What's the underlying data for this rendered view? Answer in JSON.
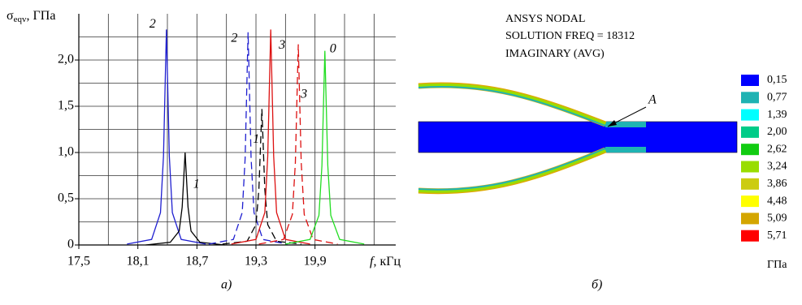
{
  "chart_data": {
    "type": "line",
    "ylabel_symbol": "σ",
    "ylabel_subscript": "eqv",
    "ylabel_unit": ", ГПа",
    "xlabel_symbol": "f",
    "xlabel_unit": ", кГц",
    "caption": "а)",
    "xlim": [
      17.5,
      20.72
    ],
    "ylim": [
      0,
      2.5
    ],
    "xticks": [
      {
        "value": 17.5,
        "label": "17,5"
      },
      {
        "value": 18.1,
        "label": "18,1"
      },
      {
        "value": 18.7,
        "label": "18,7"
      },
      {
        "value": 19.3,
        "label": "19,3"
      },
      {
        "value": 19.9,
        "label": "19,9"
      }
    ],
    "yticks": [
      0,
      {
        "value": 0.5,
        "label": "0,5"
      },
      {
        "value": 1.0,
        "label": "1,0"
      },
      {
        "value": 1.5,
        "label": "1,5"
      },
      {
        "value": 2.0,
        "label": "2,0"
      }
    ],
    "xminorticks": [
      17.8,
      18.4,
      19.0,
      19.6,
      20.2,
      20.5
    ],
    "yminorticks": [
      0.25,
      0.75,
      1.25,
      1.75,
      2.25
    ],
    "grid": true,
    "series": [
      {
        "name": "2",
        "color": "#1f1fd0",
        "linestyle": "solid",
        "x": [
          17.99,
          18.24,
          18.33,
          18.36,
          18.39,
          18.42,
          18.45,
          18.54,
          18.79
        ],
        "values": [
          0.01,
          0.06,
          0.35,
          0.96,
          2.33,
          0.96,
          0.35,
          0.06,
          0.01
        ]
      },
      {
        "name": "1",
        "color": "#000000",
        "linestyle": "solid",
        "x": [
          18.18,
          18.43,
          18.52,
          18.55,
          18.58,
          18.61,
          18.64,
          18.73,
          18.98
        ],
        "values": [
          0,
          0.03,
          0.15,
          0.41,
          1.0,
          0.41,
          0.15,
          0.03,
          0
        ]
      },
      {
        "name": "2",
        "color": "#1f1fd0",
        "linestyle": "dashed",
        "x": [
          18.82,
          19.07,
          19.16,
          19.19,
          19.22,
          19.25,
          19.28,
          19.37,
          19.62
        ],
        "values": [
          0.01,
          0.06,
          0.35,
          0.94,
          2.3,
          0.94,
          0.35,
          0.06,
          0.01
        ]
      },
      {
        "name": "1",
        "color": "#000000",
        "linestyle": "dashed",
        "x": [
          18.96,
          19.21,
          19.3,
          19.33,
          19.36,
          19.39,
          19.42,
          19.51,
          19.76
        ],
        "values": [
          0.01,
          0.04,
          0.22,
          0.6,
          1.47,
          0.6,
          0.22,
          0.04,
          0.01
        ]
      },
      {
        "name": "3",
        "color": "#dd1111",
        "linestyle": "solid",
        "x": [
          19.05,
          19.3,
          19.39,
          19.42,
          19.45,
          19.48,
          19.51,
          19.6,
          19.85
        ],
        "values": [
          0.01,
          0.06,
          0.35,
          0.96,
          2.33,
          0.96,
          0.35,
          0.06,
          0.01
        ]
      },
      {
        "name": "3",
        "color": "#dd1111",
        "linestyle": "dashed",
        "x": [
          19.33,
          19.58,
          19.67,
          19.7,
          19.73,
          19.76,
          19.79,
          19.88,
          20.13
        ],
        "values": [
          0.01,
          0.06,
          0.33,
          0.89,
          2.17,
          0.89,
          0.33,
          0.06,
          0.01
        ]
      },
      {
        "name": "0",
        "color": "#22dd22",
        "linestyle": "solid",
        "x": [
          19.6,
          19.85,
          19.94,
          19.97,
          20.0,
          20.03,
          20.06,
          20.15,
          20.4
        ],
        "values": [
          0.01,
          0.06,
          0.32,
          0.86,
          2.1,
          0.86,
          0.32,
          0.06,
          0.01
        ]
      }
    ]
  },
  "contour": {
    "header": [
      "ANSYS NODAL",
      "SOLUTION FREQ = 18312",
      "IMAGINARY (AVG)"
    ],
    "point_label": "A",
    "unit": "ГПа",
    "caption": "б)",
    "legend": [
      {
        "value": 0.15,
        "label": "0,15",
        "color": "#0000ff"
      },
      {
        "value": 0.77,
        "label": "0,77",
        "color": "#1fb3b3"
      },
      {
        "value": 1.39,
        "label": "1,39",
        "color": "#00ffff"
      },
      {
        "value": 2.0,
        "label": "2,00",
        "color": "#00cc88"
      },
      {
        "value": 2.62,
        "label": "2,62",
        "color": "#11cc11"
      },
      {
        "value": 3.24,
        "label": "3,24",
        "color": "#99dd00"
      },
      {
        "value": 3.86,
        "label": "3,86",
        "color": "#cccc11"
      },
      {
        "value": 4.48,
        "label": "4,48",
        "color": "#ffff00"
      },
      {
        "value": 5.09,
        "label": "5,09",
        "color": "#d4a600"
      },
      {
        "value": 5.71,
        "label": "5,71",
        "color": "#ff0000"
      }
    ]
  }
}
